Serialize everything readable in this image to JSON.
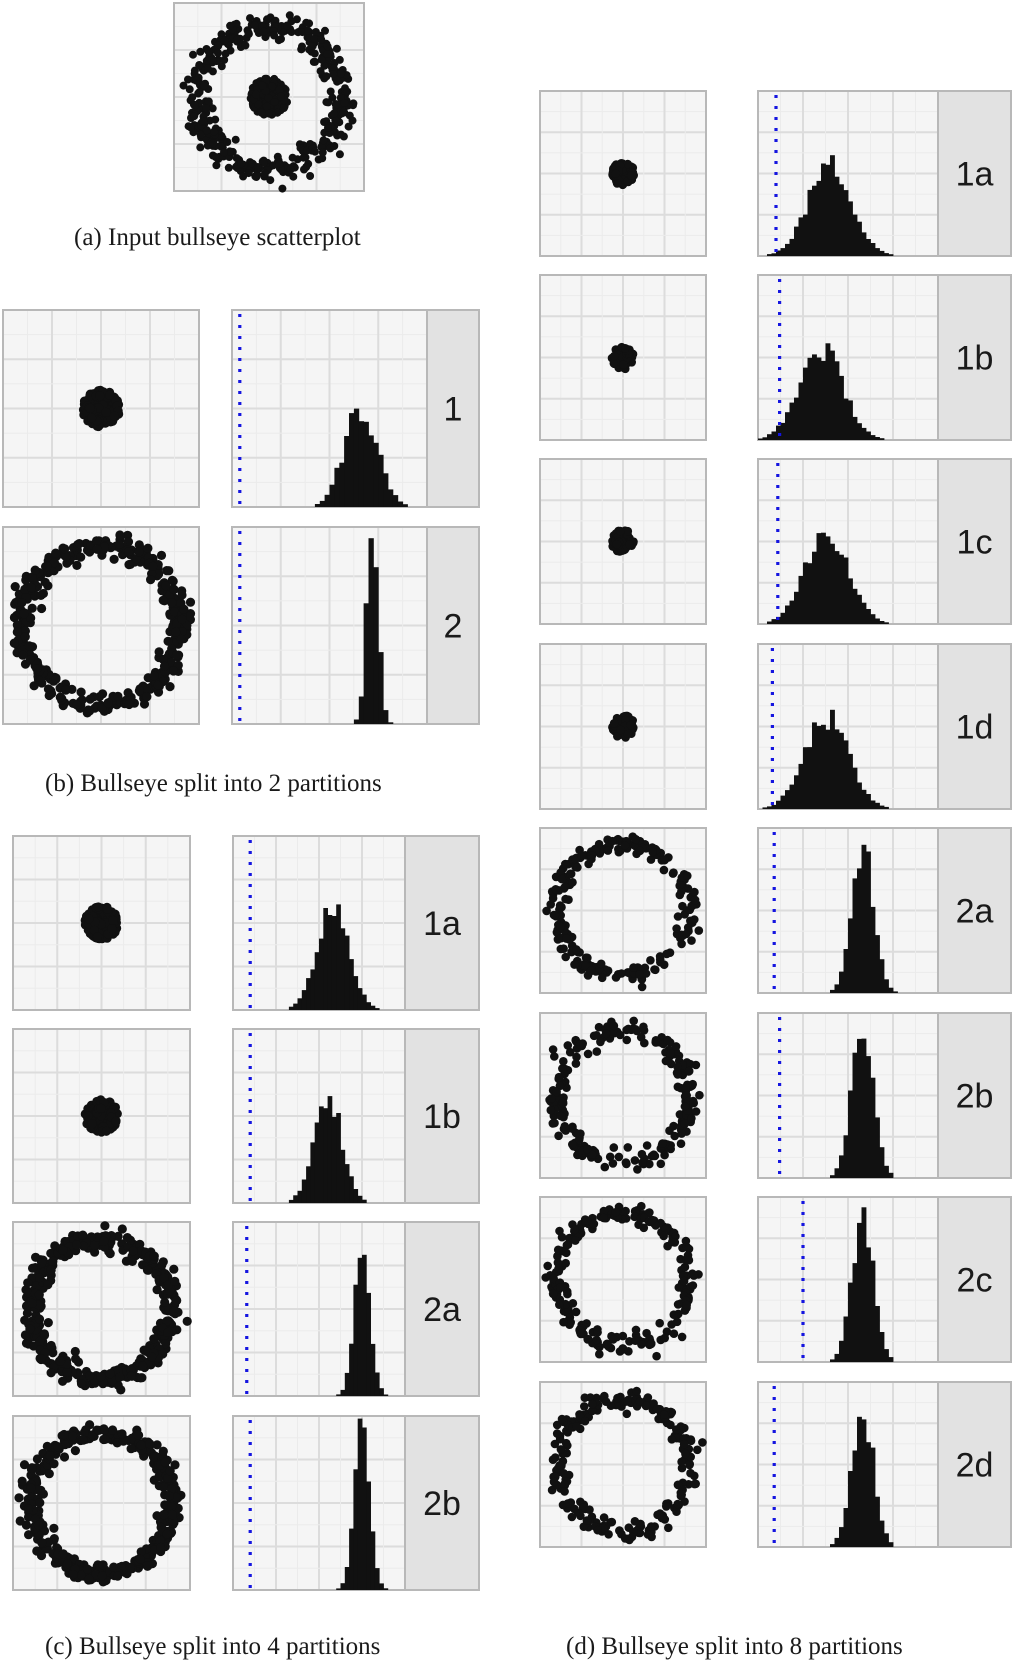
{
  "captions": {
    "a": "(a) Input bullseye scatterplot",
    "b": "(b) Bullseye split into 2 partitions",
    "c": "(c) Bullseye split into 4 partitions",
    "d": "(d) Bullseye split into 8 partitions"
  },
  "colors": {
    "points": "#111111",
    "bars": "#111111",
    "reference_line": "#1515e0",
    "panel_bg": "#f5f5f5",
    "grid_major": "#dcdcdc",
    "grid_minor": "#ebebeb",
    "frame": "#b8b8b8",
    "strip_bg": "#e2e2e2"
  },
  "chart_data": [
    {
      "id": "a",
      "type": "scatter",
      "shape": "bullseye",
      "title": "(a) Input bullseye scatterplot",
      "components": [
        "inner cluster",
        "outer ring"
      ]
    },
    {
      "id": "b",
      "type": "small-multiples",
      "title": "(b) Bullseye split into 2 partitions",
      "partitions": [
        {
          "label": "1",
          "scatter": "inner cluster",
          "hist_peak": 0.66,
          "hist_spread": 0.085,
          "hist_max": 0.5,
          "ref_line": 0.04
        },
        {
          "label": "2",
          "scatter": "outer ring",
          "hist_peak": 0.72,
          "hist_spread": 0.03,
          "hist_max": 0.98,
          "ref_line": 0.04
        }
      ]
    },
    {
      "id": "c",
      "type": "small-multiples",
      "title": "(c) Bullseye split into 4 partitions",
      "partitions": [
        {
          "label": "1a",
          "scatter": "inner cluster",
          "hist_peak": 0.58,
          "hist_spread": 0.09,
          "hist_max": 0.62,
          "ref_line": 0.1
        },
        {
          "label": "1b",
          "scatter": "inner cluster",
          "hist_peak": 0.55,
          "hist_spread": 0.08,
          "hist_max": 0.62,
          "ref_line": 0.1
        },
        {
          "label": "2a",
          "scatter": "outer ring",
          "hist_peak": 0.75,
          "hist_spread": 0.045,
          "hist_max": 0.9,
          "ref_line": 0.08
        },
        {
          "label": "2b",
          "scatter": "outer ring",
          "hist_peak": 0.75,
          "hist_spread": 0.045,
          "hist_max": 0.9,
          "ref_line": 0.1
        }
      ]
    },
    {
      "id": "d",
      "type": "small-multiples",
      "title": "(d) Bullseye split into 8 partitions",
      "partitions": [
        {
          "label": "1a",
          "scatter": "inner cluster",
          "hist_peak": 0.4,
          "hist_spread": 0.12,
          "hist_max": 0.55,
          "ref_line": 0.1
        },
        {
          "label": "1b",
          "scatter": "inner cluster",
          "hist_peak": 0.35,
          "hist_spread": 0.12,
          "hist_max": 0.55,
          "ref_line": 0.12
        },
        {
          "label": "1c",
          "scatter": "inner cluster",
          "hist_peak": 0.38,
          "hist_spread": 0.12,
          "hist_max": 0.55,
          "ref_line": 0.11
        },
        {
          "label": "1d",
          "scatter": "inner cluster",
          "hist_peak": 0.38,
          "hist_spread": 0.12,
          "hist_max": 0.55,
          "ref_line": 0.08
        },
        {
          "label": "2a",
          "scatter": "outer ring",
          "hist_peak": 0.58,
          "hist_spread": 0.06,
          "hist_max": 0.9,
          "ref_line": 0.09
        },
        {
          "label": "2b",
          "scatter": "outer ring",
          "hist_peak": 0.58,
          "hist_spread": 0.06,
          "hist_max": 0.9,
          "ref_line": 0.12
        },
        {
          "label": "2c",
          "scatter": "outer ring",
          "hist_peak": 0.58,
          "hist_spread": 0.06,
          "hist_max": 0.88,
          "ref_line": 0.25
        },
        {
          "label": "2d",
          "scatter": "outer ring",
          "hist_peak": 0.58,
          "hist_spread": 0.06,
          "hist_max": 0.85,
          "ref_line": 0.09
        }
      ]
    }
  ]
}
